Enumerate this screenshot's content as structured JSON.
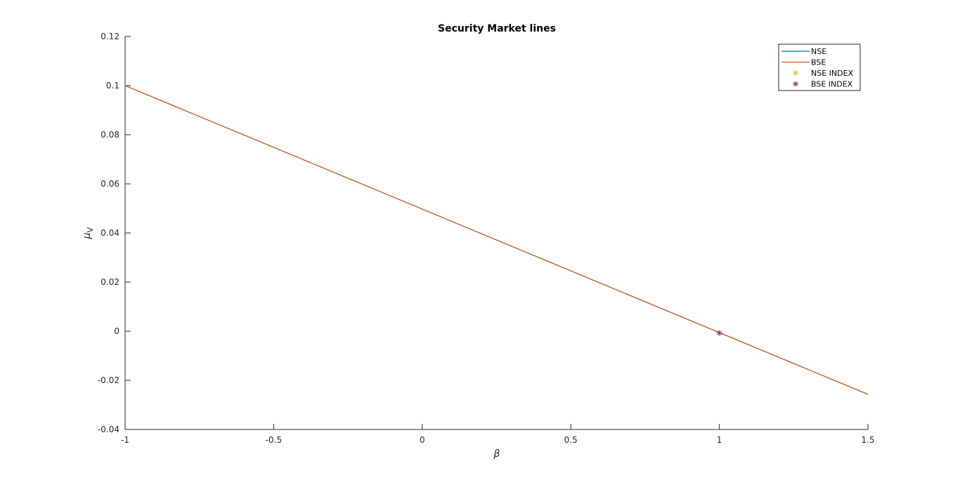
{
  "chart_data": {
    "type": "line",
    "title": "Security Market lines",
    "xlabel": "β",
    "ylabel_main": "μ",
    "ylabel_sub": "V",
    "xlim": [
      -1,
      1.5
    ],
    "ylim": [
      -0.04,
      0.12
    ],
    "xticks": [
      -1,
      -0.5,
      0,
      0.5,
      1,
      1.5
    ],
    "xtick_labels": [
      "-1",
      "-0.5",
      "0",
      "0.5",
      "1",
      "1.5"
    ],
    "yticks": [
      -0.04,
      -0.02,
      0,
      0.02,
      0.04,
      0.06,
      0.08,
      0.1,
      0.12
    ],
    "ytick_labels": [
      "-0.04",
      "-0.02",
      "0",
      "0.02",
      "0.04",
      "0.06",
      "0.08",
      "0.1",
      "0.12"
    ],
    "grid": false,
    "legend_position": "top-right",
    "series": [
      {
        "name": "NSE",
        "kind": "line",
        "color": "#0072BD",
        "x": [
          -1,
          1.5
        ],
        "y": [
          0.1,
          -0.0257
        ]
      },
      {
        "name": "BSE",
        "kind": "line",
        "color": "#D95319",
        "x": [
          -1,
          1.5
        ],
        "y": [
          0.1,
          -0.0257
        ]
      },
      {
        "name": "NSE INDEX",
        "kind": "marker",
        "marker": "*",
        "color": "#EDB120",
        "x": [
          1
        ],
        "y": [
          -0.0007
        ]
      },
      {
        "name": "BSE INDEX",
        "kind": "marker",
        "marker": "*",
        "color": "#7E2F8E",
        "x": [
          1
        ],
        "y": [
          -0.0007
        ]
      }
    ]
  }
}
